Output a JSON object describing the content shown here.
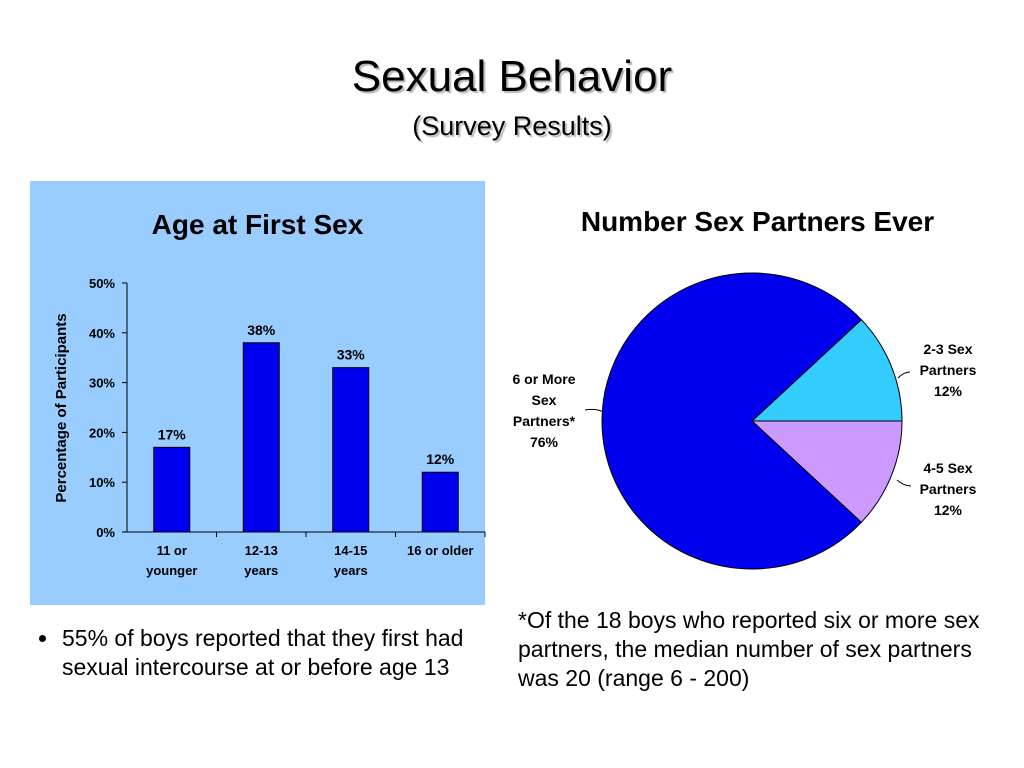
{
  "slide": {
    "title": "Sexual Behavior",
    "subtitle": "(Survey Results)",
    "bullet": "55% of boys reported that they first had sexual intercourse at or before age 13",
    "footnote": "*Of the 18 boys who reported six or more sex partners, the median number of sex partners was 20 (range 6 - 200)"
  },
  "colors": {
    "panel_bg": "#99ccff",
    "bar_fill": "#0000ee",
    "pie_dark_blue": "#0000ee",
    "pie_cyan": "#33ccff",
    "pie_lavender": "#cc99ff"
  },
  "chart_data": [
    {
      "type": "bar",
      "title": "Age at First Sex",
      "ylabel": "Percentage of Participants",
      "xlabel": "",
      "categories": [
        [
          "11 or",
          "younger"
        ],
        [
          "12-13",
          "years"
        ],
        [
          "14-15",
          "years"
        ],
        [
          "16 or older"
        ]
      ],
      "values": [
        17,
        38,
        33,
        12
      ],
      "data_labels": [
        "17%",
        "38%",
        "33%",
        "12%"
      ],
      "yticks": [
        "0%",
        "10%",
        "20%",
        "30%",
        "40%",
        "50%"
      ],
      "ylim": [
        0,
        50
      ],
      "grid": false,
      "legend": "none"
    },
    {
      "type": "pie",
      "title": "Number Sex Partners Ever",
      "slices": [
        {
          "label": [
            "6 or More",
            "Sex",
            "Partners*"
          ],
          "pct_label": "76%",
          "value": 76,
          "color": "#0000ee"
        },
        {
          "label": [
            "2-3 Sex",
            "Partners"
          ],
          "pct_label": "12%",
          "value": 12,
          "color": "#33ccff"
        },
        {
          "label": [
            "4-5 Sex",
            "Partners"
          ],
          "pct_label": "12%",
          "value": 12,
          "color": "#cc99ff"
        }
      ],
      "legend": "none"
    }
  ]
}
